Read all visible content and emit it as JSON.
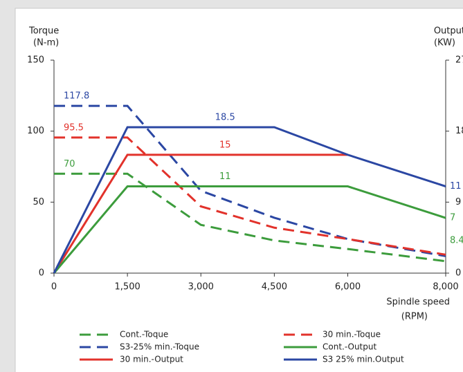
{
  "chart_data": {
    "type": "line",
    "y_label": [
      "Torque",
      "(N-m)"
    ],
    "y2_label": [
      "Output",
      "(KW)"
    ],
    "x_label": [
      "Spindle speed",
      "(RPM)"
    ],
    "x": [
      0,
      1500,
      3000,
      4500,
      6000,
      8000
    ],
    "xlim": [
      0,
      8000
    ],
    "xticks": [
      0,
      {
        "value": 1500,
        "label": "1,500"
      },
      {
        "value": 3000,
        "label": "3,000"
      },
      {
        "value": 4500,
        "label": "4,500"
      },
      {
        "value": 6000,
        "label": "6,000"
      },
      {
        "value": 8000,
        "label": "8,000"
      }
    ],
    "ylim": [
      0,
      150
    ],
    "yticks": [
      0,
      50,
      100,
      150
    ],
    "y2lim": [
      0,
      27
    ],
    "y2ticks": [
      0,
      9,
      18,
      27
    ],
    "grid": false,
    "series": [
      {
        "name": "Cont.-Toque",
        "color": "#3c9c3c",
        "dash": true,
        "values": [
          70,
          70,
          34,
          23,
          17,
          8.4
        ],
        "value_labels": [
          "70",
          null,
          null,
          null,
          null,
          "8.4"
        ]
      },
      {
        "name": "S3-25% min.-Toque",
        "color": "#2b47a3",
        "dash": true,
        "values": [
          117.8,
          117.8,
          58,
          39,
          24,
          12
        ],
        "value_labels": [
          "117.8",
          null,
          null,
          null,
          null,
          null
        ]
      },
      {
        "name": "30 min.-Output",
        "color": "#e2322b",
        "dash": false,
        "axis": "y2",
        "values": [
          0,
          15,
          15,
          15,
          15,
          null
        ],
        "value_labels": [
          null,
          null,
          "15",
          null,
          null,
          null
        ]
      },
      {
        "name": "30 min.-Toque",
        "color": "#e2322b",
        "dash": true,
        "values": [
          95.5,
          95.5,
          47,
          32,
          24,
          13
        ],
        "value_labels": [
          "95.5",
          null,
          null,
          null,
          null,
          null
        ]
      },
      {
        "name": "Cont.-Output",
        "color": "#3c9c3c",
        "dash": false,
        "axis": "y2",
        "values": [
          0,
          11,
          11,
          11,
          11,
          7
        ],
        "value_labels": [
          null,
          null,
          "11",
          null,
          null,
          "7"
        ]
      },
      {
        "name": "S3 25% min.Output",
        "color": "#2b47a3",
        "dash": false,
        "axis": "y2",
        "values": [
          0,
          18.5,
          18.5,
          18.5,
          15,
          11
        ],
        "value_labels": [
          null,
          null,
          "18.5",
          null,
          null,
          "11"
        ]
      }
    ]
  }
}
